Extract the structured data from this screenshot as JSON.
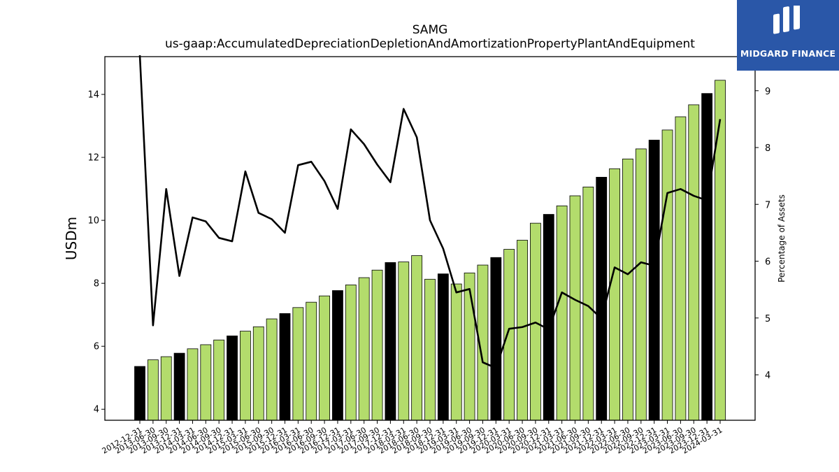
{
  "chart_data": {
    "type": "bar",
    "title": "SAMG",
    "subtitle": "us-gaap:AccumulatedDepreciationDepletionAndAmortizationPropertyPlantAndEquipment",
    "ylabel": "USDm",
    "ylabel_right": "Percentage of Assets",
    "ylim": [
      3.65,
      15.2
    ],
    "ylim_right": [
      3.2,
      9.6
    ],
    "yticks": [
      4,
      6,
      8,
      10,
      12,
      14
    ],
    "yticks_right": [
      4,
      5,
      6,
      7,
      8,
      9
    ],
    "grid": false,
    "categories": [
      "2012-12-31",
      "2013-06-30",
      "2013-09-30",
      "2013-12-31",
      "2014-03-31",
      "2014-06-30",
      "2014-09-30",
      "2014-12-31",
      "2015-03-31",
      "2015-06-30",
      "2015-09-30",
      "2015-12-31",
      "2016-03-31",
      "2016-06-30",
      "2016-09-30",
      "2016-12-31",
      "2017-03-31",
      "2017-06-30",
      "2017-09-30",
      "2017-12-31",
      "2018-03-31",
      "2018-06-30",
      "2018-09-30",
      "2018-12-31",
      "2019-03-31",
      "2019-06-30",
      "2019-09-30",
      "2019-12-31",
      "2020-03-31",
      "2020-06-30",
      "2020-09-30",
      "2020-12-31",
      "2021-03-31",
      "2021-06-30",
      "2021-09-30",
      "2021-12-31",
      "2022-03-31",
      "2022-06-30",
      "2022-09-30",
      "2022-12-31",
      "2023-03-31",
      "2023-06-30",
      "2023-09-30",
      "2023-12-31",
      "2024-03-31"
    ],
    "series": [
      {
        "axis": "left",
        "kind": "bar",
        "values": [
          5.36,
          5.57,
          5.67,
          5.78,
          5.92,
          6.05,
          6.2,
          6.33,
          6.48,
          6.62,
          6.87,
          7.04,
          7.23,
          7.4,
          7.6,
          7.77,
          7.95,
          8.18,
          8.42,
          8.66,
          8.68,
          8.88,
          8.13,
          8.3,
          7.98,
          8.33,
          8.58,
          8.82,
          9.08,
          9.37,
          9.91,
          10.19,
          10.46,
          10.78,
          11.06,
          11.37,
          11.64,
          11.95,
          12.27,
          12.55,
          12.87,
          13.29,
          13.67,
          14.03,
          14.45
        ],
        "colors": [
          "#000000",
          "#b3dc6c",
          "#b3dc6c",
          "#000000",
          "#b3dc6c",
          "#b3dc6c",
          "#b3dc6c",
          "#000000",
          "#b3dc6c",
          "#b3dc6c",
          "#b3dc6c",
          "#000000",
          "#b3dc6c",
          "#b3dc6c",
          "#b3dc6c",
          "#000000",
          "#b3dc6c",
          "#b3dc6c",
          "#b3dc6c",
          "#000000",
          "#b3dc6c",
          "#b3dc6c",
          "#b3dc6c",
          "#000000",
          "#b3dc6c",
          "#b3dc6c",
          "#b3dc6c",
          "#000000",
          "#b3dc6c",
          "#b3dc6c",
          "#b3dc6c",
          "#000000",
          "#b3dc6c",
          "#b3dc6c",
          "#b3dc6c",
          "#000000",
          "#b3dc6c",
          "#b3dc6c",
          "#b3dc6c",
          "#000000",
          "#b3dc6c",
          "#b3dc6c",
          "#b3dc6c",
          "#000000",
          "#b3dc6c"
        ]
      },
      {
        "axis": "right",
        "kind": "line",
        "color": "#000000",
        "values": [
          9.7,
          4.87,
          7.27,
          5.74,
          6.77,
          6.7,
          6.41,
          6.35,
          7.58,
          6.85,
          6.74,
          6.5,
          7.69,
          7.75,
          7.41,
          6.92,
          8.32,
          8.06,
          7.7,
          7.39,
          8.68,
          8.18,
          6.72,
          6.22,
          5.45,
          5.51,
          4.22,
          4.12,
          4.81,
          4.84,
          4.92,
          4.8,
          5.45,
          5.32,
          5.21,
          4.99,
          5.89,
          5.77,
          5.98,
          5.92,
          7.2,
          7.27,
          7.15,
          7.07,
          8.5
        ]
      }
    ]
  },
  "logo": {
    "text": "MIDGARD FINANCE",
    "color": "#2a57a8"
  }
}
